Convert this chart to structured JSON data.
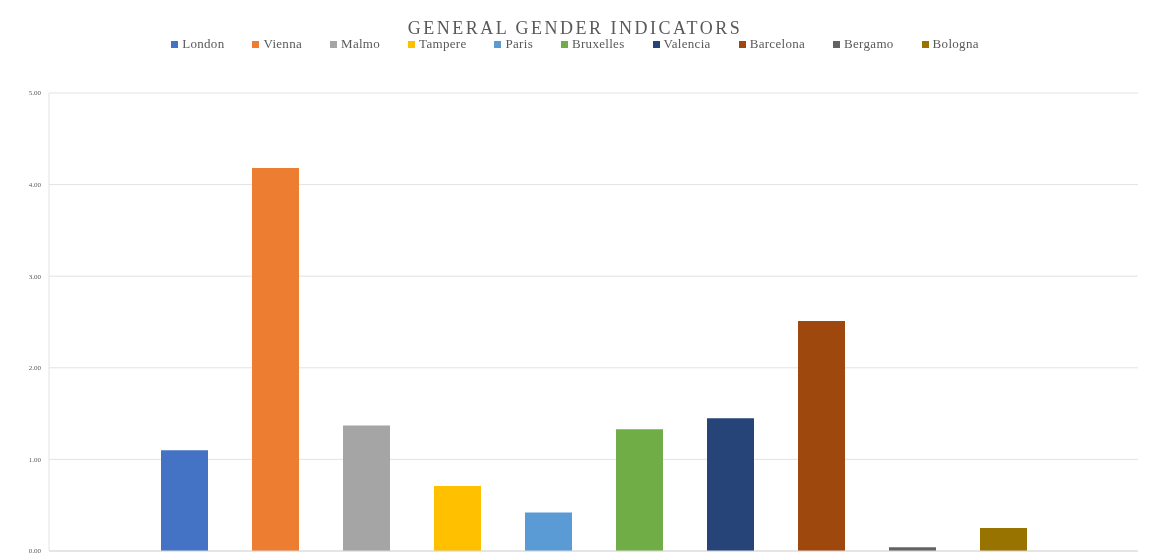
{
  "chart_data": {
    "type": "bar",
    "title": "GENERAL GENDER INDICATORS",
    "categories": [
      null
    ],
    "series": [
      {
        "name": "London",
        "color": "#4472c4",
        "values": [
          1.1
        ]
      },
      {
        "name": "Vienna",
        "color": "#ed7d31",
        "values": [
          4.18
        ]
      },
      {
        "name": "Malmo",
        "color": "#a5a5a5",
        "values": [
          1.37
        ]
      },
      {
        "name": "Tampere",
        "color": "#ffc000",
        "values": [
          0.71
        ]
      },
      {
        "name": "Paris",
        "color": "#5b9bd5",
        "values": [
          0.42
        ]
      },
      {
        "name": "Bruxelles",
        "color": "#70ad47",
        "values": [
          1.33
        ]
      },
      {
        "name": "Valencia",
        "color": "#264478",
        "values": [
          1.45
        ]
      },
      {
        "name": "Barcelona",
        "color": "#9e480e",
        "values": [
          2.51
        ]
      },
      {
        "name": "Bergamo",
        "color": "#636363",
        "values": [
          0.04
        ]
      },
      {
        "name": "Bologna",
        "color": "#997300",
        "values": [
          0.25
        ]
      }
    ],
    "ylim": [
      0,
      5
    ],
    "yticks": [
      {
        "value": 0,
        "label": "0.00"
      },
      {
        "value": 1,
        "label": "1.00"
      },
      {
        "value": 2,
        "label": "2.00"
      },
      {
        "value": 3,
        "label": "3.00"
      },
      {
        "value": 4,
        "label": "4.00"
      },
      {
        "value": 5,
        "label": "5.00"
      }
    ],
    "grid": "y",
    "legend": "top",
    "tick_labels": "y"
  }
}
